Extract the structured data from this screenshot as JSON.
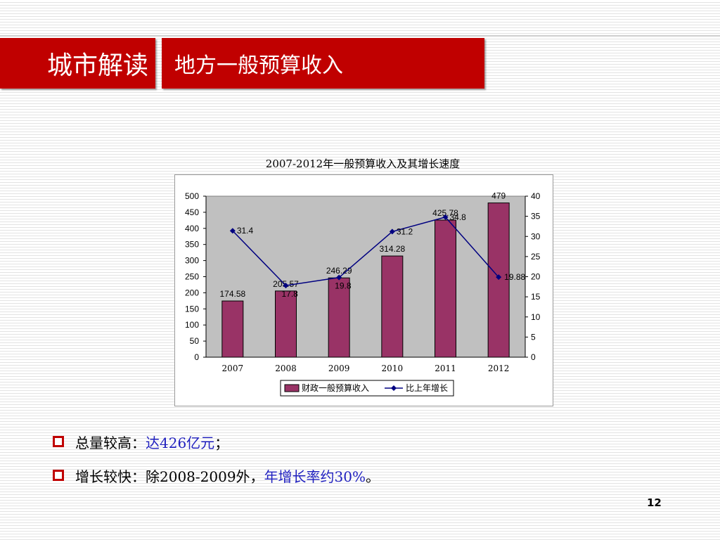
{
  "header": {
    "section_title": "城市解读",
    "slide_title": "地方一般预算收入"
  },
  "chart_data": {
    "type": "bar",
    "title": "2007-2012年一般预算收入及其增长速度",
    "categories": [
      "2007",
      "2008",
      "2009",
      "2010",
      "2011",
      "2012"
    ],
    "series": [
      {
        "name": "财政一般预算收入",
        "type": "bar",
        "axis": "left",
        "color": "#993366",
        "values": [
          174.58,
          205.57,
          246.29,
          314.28,
          425.78,
          479
        ],
        "labels": [
          "174.58",
          "205.57",
          "246.29",
          "314.28",
          "425.78",
          "479"
        ]
      },
      {
        "name": "比上年增长",
        "type": "line",
        "axis": "right",
        "color": "#000080",
        "values": [
          31.4,
          17.8,
          19.8,
          31.2,
          34.8,
          19.88
        ],
        "labels": [
          "31.4",
          "17.8",
          "19.8",
          "31.2",
          "34.8",
          "19.88"
        ]
      }
    ],
    "ylim_left": [
      0,
      500
    ],
    "yticks_left": [
      0,
      50,
      100,
      150,
      200,
      250,
      300,
      350,
      400,
      450,
      500
    ],
    "ylim_right": [
      0,
      40
    ],
    "yticks_right": [
      0,
      5,
      10,
      15,
      20,
      25,
      30,
      35,
      40
    ],
    "grid": false,
    "legend_position": "bottom",
    "plot_background": "#c0c0c0"
  },
  "bullets": [
    {
      "text": "总量较高：",
      "highlight": "达426亿元",
      "suffix": "；"
    },
    {
      "text": "增长较快：除2008-2009外，",
      "highlight": "年增长率约30%",
      "suffix": "。"
    }
  ],
  "page_number": "12",
  "colors": {
    "title_red": "#c00000",
    "bar": "#993366",
    "line": "#000080",
    "highlight_text": "#1f1fbf"
  }
}
